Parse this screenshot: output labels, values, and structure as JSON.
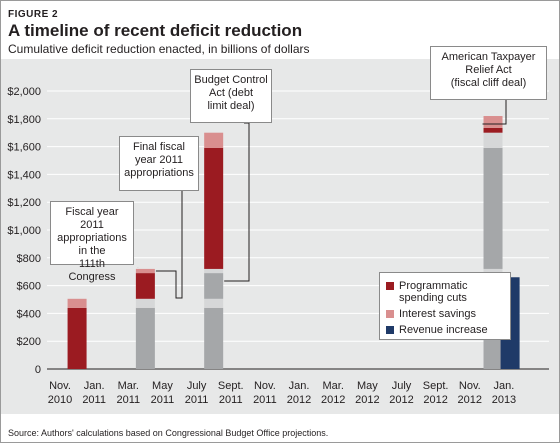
{
  "figure_label": "FIGURE 2",
  "title": "A timeline of recent deficit reduction",
  "subtitle": "Cumulative deficit reduction enacted, in billions of dollars",
  "source": "Source: Authors' calculations based on Congressional Budget Office projections.",
  "colors": {
    "programmatic": "#9b1b21",
    "interest": "#d98f8f",
    "revenue": "#1f3a68",
    "prior": "#a5a7a9",
    "prior_interest": "#d6d7d8",
    "background": "#e7e8e8"
  },
  "chart_data": {
    "type": "bar",
    "stacked": true,
    "categories": [
      "Nov.\n2010",
      "Jan.\n2011",
      "Mar.\n2011",
      "May\n2011",
      "July\n2011",
      "Sept.\n2011",
      "Nov.\n2011",
      "Jan.\n2012",
      "Mar.\n2012",
      "May\n2012",
      "July\n2012",
      "Sept.\n2012",
      "Nov.\n2012",
      "Jan.\n2013"
    ],
    "yticks": [
      "0",
      "$200",
      "$400",
      "$600",
      "$800",
      "$1,000",
      "$1,200",
      "$1,400",
      "$1,600",
      "$1,800",
      "$2,000"
    ],
    "ylim": [
      0,
      2000
    ],
    "legend_position": "inside-bottom-right",
    "legend": [
      {
        "key": "programmatic",
        "label": "Programmatic\nspending cuts"
      },
      {
        "key": "interest",
        "label": "Interest savings"
      },
      {
        "key": "revenue",
        "label": "Revenue increase"
      }
    ],
    "bars": [
      {
        "position": 0.5,
        "segments": [
          {
            "key": "programmatic",
            "from": 0,
            "to": 440
          },
          {
            "key": "interest",
            "from": 440,
            "to": 505
          }
        ]
      },
      {
        "position": 2.5,
        "segments": [
          {
            "key": "prior",
            "from": 0,
            "to": 440
          },
          {
            "key": "prior_interest",
            "from": 440,
            "to": 505
          },
          {
            "key": "programmatic",
            "from": 505,
            "to": 690
          },
          {
            "key": "interest",
            "from": 690,
            "to": 720
          }
        ]
      },
      {
        "position": 4.5,
        "segments": [
          {
            "key": "prior",
            "from": 0,
            "to": 440
          },
          {
            "key": "prior_interest",
            "from": 440,
            "to": 505
          },
          {
            "key": "prior",
            "from": 505,
            "to": 690
          },
          {
            "key": "prior_interest",
            "from": 690,
            "to": 720
          },
          {
            "key": "programmatic",
            "from": 720,
            "to": 1590
          },
          {
            "key": "interest",
            "from": 1590,
            "to": 1700
          }
        ]
      },
      {
        "position": 12.68,
        "segments": [
          {
            "key": "prior",
            "from": 0,
            "to": 440
          },
          {
            "key": "prior_interest",
            "from": 440,
            "to": 505
          },
          {
            "key": "prior",
            "from": 505,
            "to": 690
          },
          {
            "key": "prior_interest",
            "from": 690,
            "to": 720
          },
          {
            "key": "prior",
            "from": 720,
            "to": 1590
          },
          {
            "key": "prior_interest",
            "from": 1590,
            "to": 1700
          },
          {
            "key": "programmatic",
            "from": 1700,
            "to": 1735
          },
          {
            "key": "interest",
            "from": 1735,
            "to": 1820
          }
        ]
      },
      {
        "position": 13.18,
        "segments": [
          {
            "key": "revenue",
            "from": 0,
            "to": 660
          }
        ]
      }
    ],
    "annotations": [
      {
        "text": "Fiscal year 2011\nappropriations\nin the\n111th Congress",
        "bar": 0
      },
      {
        "text": "Final fiscal\nyear 2011\nappropriations",
        "bar": 1
      },
      {
        "text": "Budget Control\nAct (debt\nlimit deal)",
        "bar": 2
      },
      {
        "text": "American Taxpayer\nRelief Act\n(fiscal cliff deal)",
        "bar": 3
      }
    ]
  }
}
